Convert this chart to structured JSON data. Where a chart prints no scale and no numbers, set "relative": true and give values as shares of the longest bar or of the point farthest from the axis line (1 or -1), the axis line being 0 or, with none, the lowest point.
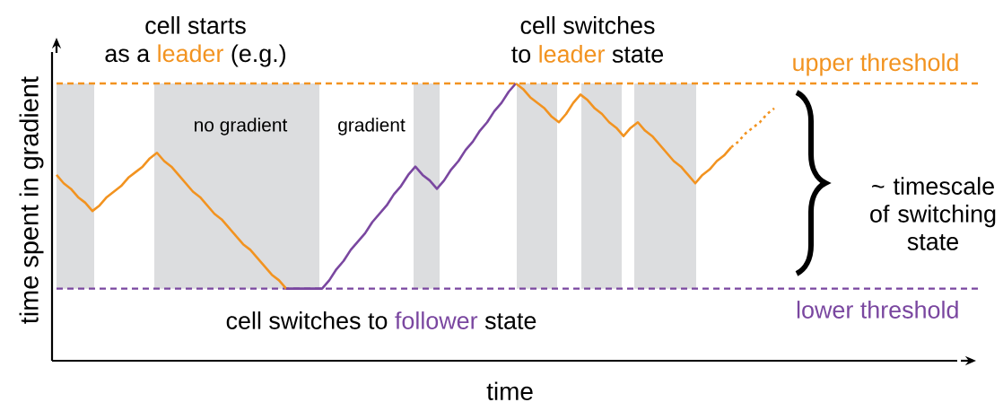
{
  "chart_data": {
    "type": "line",
    "relative": true,
    "xlabel": "time",
    "ylabel": "time spent in gradient",
    "categories": [
      null,
      null,
      null,
      null,
      null,
      null,
      null,
      null,
      null,
      null,
      null,
      null,
      null,
      null,
      null,
      null,
      null,
      null,
      null,
      null,
      null,
      null,
      null,
      null,
      null,
      null,
      null,
      null,
      null,
      null,
      null,
      null,
      null,
      null,
      null,
      null,
      null,
      null,
      null,
      null,
      null,
      null,
      null,
      null,
      null,
      null,
      null,
      null,
      null,
      null,
      null,
      null,
      null,
      null,
      null,
      null,
      null,
      null,
      null,
      null,
      null,
      null,
      null,
      null,
      null,
      null,
      null,
      null,
      null,
      null,
      null,
      null,
      null,
      null,
      null,
      null,
      null,
      null,
      null,
      null,
      null,
      null,
      null,
      null,
      null,
      null,
      null,
      null,
      null,
      null,
      null,
      null,
      null,
      null,
      null,
      null,
      null,
      null,
      null,
      null,
      null
    ],
    "series": [
      {
        "color": "#f29320",
        "line_style": "solid",
        "values": [
          0.67,
          0.64,
          0.62,
          0.59,
          0.57,
          0.54,
          0.56,
          0.59,
          0.61,
          0.63,
          0.66,
          0.68,
          0.7,
          0.73,
          0.75,
          0.72,
          0.7,
          0.67,
          0.64,
          0.61,
          0.59,
          0.56,
          0.53,
          0.51,
          0.48,
          0.45,
          0.42,
          0.4,
          0.37,
          0.34,
          0.31,
          0.29,
          0.26,
          null,
          null,
          null,
          null,
          null,
          null,
          null,
          null,
          null,
          null,
          null,
          null,
          null,
          null,
          null,
          null,
          null,
          null,
          null,
          null,
          null,
          null,
          null,
          null,
          null,
          null,
          null,
          null,
          null,
          null,
          null,
          null,
          null,
          null,
          null,
          null,
          null,
          null,
          null,
          null,
          null,
          null,
          null,
          null,
          null,
          null,
          null,
          null,
          null,
          null,
          null,
          null,
          null,
          null,
          null,
          null,
          null,
          null,
          null,
          null,
          null,
          null,
          null,
          null,
          null,
          null,
          null,
          null
        ]
      },
      {
        "color": "#7a47a0",
        "line_style": "solid",
        "values": [
          null,
          null,
          null,
          null,
          null,
          null,
          null,
          null,
          null,
          null,
          null,
          null,
          null,
          null,
          null,
          null,
          null,
          null,
          null,
          null,
          null,
          null,
          null,
          null,
          null,
          null,
          null,
          null,
          null,
          null,
          null,
          null,
          0.26,
          0.26,
          0.26,
          0.26,
          0.26,
          0.26,
          0.29,
          0.33,
          0.36,
          0.4,
          0.43,
          0.46,
          0.5,
          0.53,
          0.56,
          0.6,
          0.63,
          0.67,
          0.7,
          0.67,
          0.65,
          0.62,
          0.65,
          0.69,
          0.72,
          0.76,
          0.79,
          0.83,
          0.86,
          0.9,
          0.93,
          0.97,
          1.0,
          null,
          null,
          null,
          null,
          null,
          null,
          null,
          null,
          null,
          null,
          null,
          null,
          null,
          null,
          null,
          null,
          null,
          null,
          null,
          null,
          null,
          null,
          null,
          null,
          null,
          null,
          null,
          null,
          null,
          null,
          null,
          null,
          null,
          null,
          null,
          null
        ]
      },
      {
        "color": "#f29320",
        "line_style": "solid",
        "values": [
          null,
          null,
          null,
          null,
          null,
          null,
          null,
          null,
          null,
          null,
          null,
          null,
          null,
          null,
          null,
          null,
          null,
          null,
          null,
          null,
          null,
          null,
          null,
          null,
          null,
          null,
          null,
          null,
          null,
          null,
          null,
          null,
          null,
          null,
          null,
          null,
          null,
          null,
          null,
          null,
          null,
          null,
          null,
          null,
          null,
          null,
          null,
          null,
          null,
          null,
          null,
          null,
          null,
          null,
          null,
          null,
          null,
          null,
          null,
          null,
          null,
          null,
          null,
          null,
          1.0,
          0.98,
          0.95,
          0.93,
          0.91,
          0.88,
          0.86,
          0.89,
          0.93,
          0.96,
          0.94,
          0.91,
          0.89,
          0.86,
          0.84,
          0.81,
          0.84,
          0.86,
          0.83,
          0.81,
          0.78,
          0.75,
          0.72,
          0.7,
          0.67,
          0.64,
          0.67,
          0.69,
          0.72,
          0.74,
          0.77,
          null,
          null,
          null,
          null,
          null,
          null
        ]
      },
      {
        "color": "#f29320",
        "line_style": "dotted",
        "values": [
          null,
          null,
          null,
          null,
          null,
          null,
          null,
          null,
          null,
          null,
          null,
          null,
          null,
          null,
          null,
          null,
          null,
          null,
          null,
          null,
          null,
          null,
          null,
          null,
          null,
          null,
          null,
          null,
          null,
          null,
          null,
          null,
          null,
          null,
          null,
          null,
          null,
          null,
          null,
          null,
          null,
          null,
          null,
          null,
          null,
          null,
          null,
          null,
          null,
          null,
          null,
          null,
          null,
          null,
          null,
          null,
          null,
          null,
          null,
          null,
          null,
          null,
          null,
          null,
          null,
          null,
          null,
          null,
          null,
          null,
          null,
          null,
          null,
          null,
          null,
          null,
          null,
          null,
          null,
          null,
          null,
          null,
          null,
          null,
          null,
          null,
          null,
          null,
          null,
          null,
          null,
          null,
          null,
          null,
          0.77,
          0.79,
          0.82,
          0.84,
          0.86,
          0.89,
          0.91
        ]
      }
    ],
    "ref_lines": [
      {
        "axis": "y",
        "value": 1.0,
        "label": "upper threshold",
        "color": "#f29320",
        "line_style": "dashed"
      },
      {
        "axis": "y",
        "value": 0.26,
        "label": "lower threshold",
        "color": "#7a47a0",
        "line_style": "dashed"
      }
    ],
    "annotations": [
      "cell starts",
      "as a",
      "leader",
      "(e.g.)",
      "cell switches",
      "to",
      "leader",
      "state",
      "no gradient",
      "gradient",
      "cell switches to",
      "follower",
      "state",
      "~ timescale of switching state"
    ]
  }
}
